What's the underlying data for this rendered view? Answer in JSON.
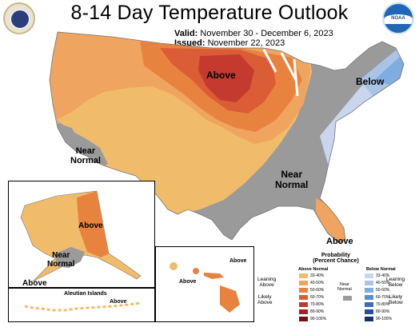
{
  "title": "8-14 Day Temperature Outlook",
  "valid_label": "Valid:",
  "valid_value": "November 30 - December 6, 2023",
  "issued_label": "Issued:",
  "issued_value": "November 22, 2023",
  "logo_right_text": "NOAA",
  "map_labels": {
    "main_above": "Above",
    "main_below": "Below",
    "main_near_west": "Near\nNormal",
    "main_near_southeast": "Near\nNormal",
    "main_florida_above": "Above",
    "alaska_above_interior": "Above",
    "alaska_near_normal": "Near\nNormal",
    "alaska_above_southwest": "Above",
    "aleutian_title": "Aleutian Islands",
    "aleutian_above": "Above",
    "hawaii_above_1": "Above",
    "hawaii_above_2": "Above"
  },
  "legend": {
    "title": "Probability\n(Percent Chance)",
    "above_header": "Above Normal",
    "below_header": "Below Normal",
    "near_label": "Near\nNormal",
    "leaning_above": "Leaning\nAbove",
    "likely_above": "Likely\nAbove",
    "leaning_below": "Leaning\nBelow",
    "likely_below": "Likely\nBelow",
    "above_bins": [
      "33-40%",
      "40-50%",
      "50-60%",
      "60-70%",
      "70-80%",
      "80-90%",
      "90-100%"
    ],
    "below_bins": [
      "33-40%",
      "40-50%",
      "50-60%",
      "60-70%",
      "70-80%",
      "80-90%",
      "90-100%"
    ],
    "above_colors": [
      "#f1bc6a",
      "#efa460",
      "#e8833f",
      "#da5d36",
      "#c43a2f",
      "#9e2526",
      "#6c1417"
    ],
    "below_colors": [
      "#c9d6ee",
      "#a9c4e6",
      "#80ace0",
      "#5a8fd0",
      "#3e6dbc",
      "#2a4d9a",
      "#1b2f6b"
    ],
    "near_color": "#9a9a9a"
  }
}
